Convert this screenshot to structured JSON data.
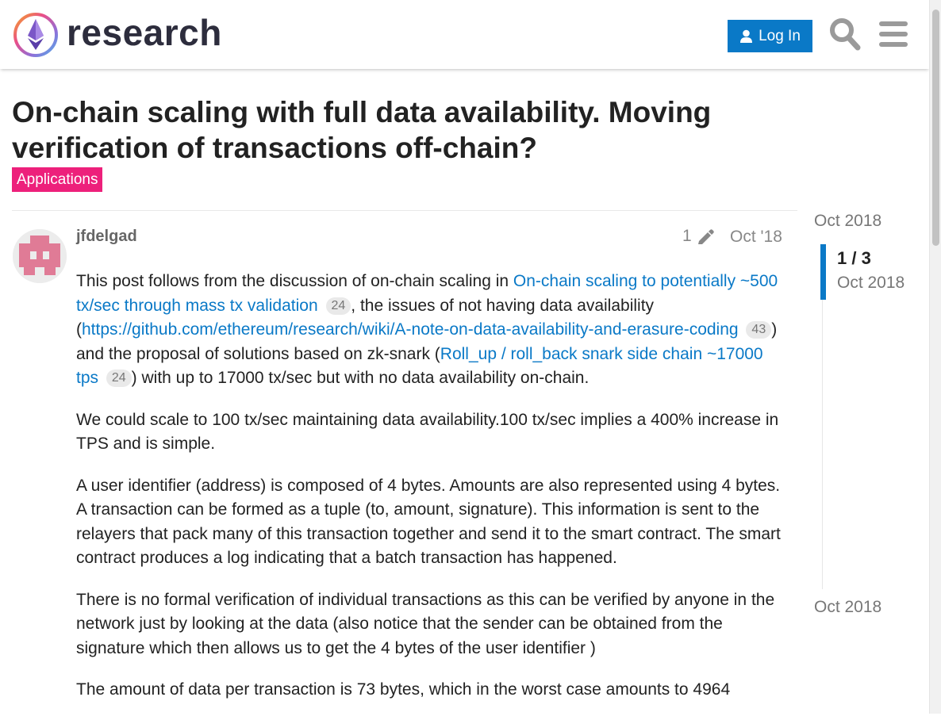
{
  "header": {
    "logo_text": "research",
    "login_label": "Log In"
  },
  "topic": {
    "title": "On-chain scaling with full data availability. Moving verification of transactions off-chain?",
    "category": "Applications",
    "category_color": "#ed207b"
  },
  "post": {
    "username": "jfdelgad",
    "edit_count": "1",
    "date": "Oct '18",
    "p1": {
      "t1": "This post follows from the discussion of on-chain scaling in ",
      "link1": "On-chain scaling to potentially ~500 tx/sec through mass tx validation",
      "link1_clicks": "24",
      "t2": ", the issues of not having data availability (",
      "link2": "https://github.com/ethereum/research/wiki/A-note-on-data-availability-and-erasure-coding",
      "link2_clicks": "43",
      "t3": ") and the proposal of solutions based on zk-snark (",
      "link3": "Roll_up / roll_back snark side chain ~17000 tps",
      "link3_clicks": "24",
      "t4": ") with up to 17000 tx/sec but with no data availability on-chain."
    },
    "p2": "We could scale to 100 tx/sec maintaining data availability.100 tx/sec implies a 400% increase in TPS and is simple.",
    "p3": "A user identifier (address) is composed of 4 bytes. Amounts are also represented using 4 bytes. A transaction can be formed as a tuple (to, amount, signature). This information is sent to the relayers that pack many of this transaction together and send it to the smart contract. The smart contract produces a log indicating that a batch transaction has happened.",
    "p4": "There is no formal verification of individual transactions as this can be verified by anyone in the network just by looking at the data (also notice that the sender can be obtained from the signature which then allows us to get the 4 bytes of the user identifier )",
    "p5": "The amount of data per transaction is 73 bytes, which in the worst case amounts to 4964"
  },
  "timeline": {
    "start_date": "Oct 2018",
    "position": "1 / 3",
    "current_date": "Oct 2018",
    "end_date": "Oct 2018"
  },
  "colors": {
    "accent": "#0a79c7",
    "category": "#ed207b"
  },
  "icons": {
    "logo": "ethereum-logo-icon",
    "login": "user-icon",
    "search": "search-icon",
    "menu": "hamburger-menu-icon",
    "edit": "pencil-icon"
  }
}
